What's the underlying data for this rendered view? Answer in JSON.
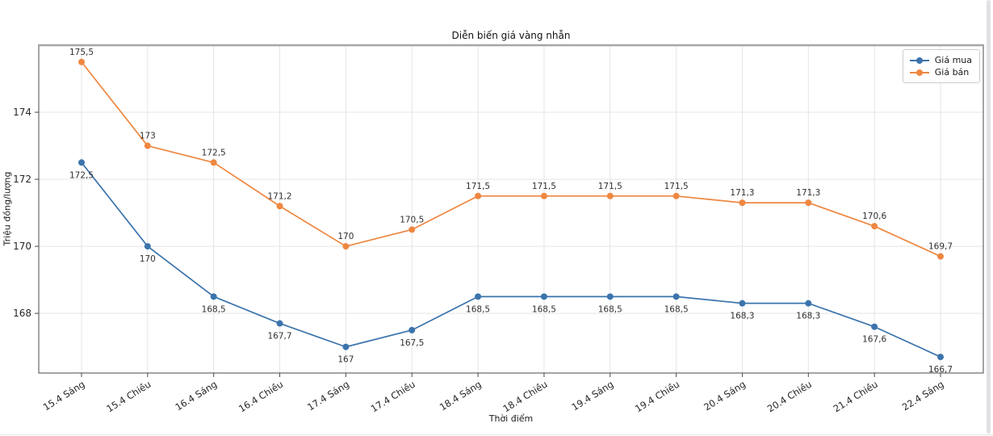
{
  "chart_data": {
    "type": "line",
    "title": "Diễn biến giá vàng nhẫn",
    "xlabel": "Thời điểm",
    "ylabel": "Triệu đồng/lượng",
    "categories": [
      "15.4 Sáng",
      "15.4 Chiều",
      "16.4 Sáng",
      "16.4 Chiều",
      "17.4 Sáng",
      "17.4 Chiều",
      "18.4 Sáng",
      "18.4 Chiều",
      "19.4 Sáng",
      "19.4 Chiều",
      "20.4 Sáng",
      "20.4 Chiều",
      "21.4 Chiều",
      "22.4 Sáng"
    ],
    "series": [
      {
        "name": "Giá mua",
        "color": "#3b74ac",
        "values": [
          172.5,
          170,
          168.5,
          167.7,
          167,
          167.5,
          168.5,
          168.5,
          168.5,
          168.5,
          168.3,
          168.3,
          167.6,
          166.7
        ],
        "labels": [
          "172,5",
          "170",
          "168,5",
          "167,7",
          "167",
          "167,5",
          "168,5",
          "168,5",
          "168,5",
          "168,5",
          "168,3",
          "168,3",
          "167,6",
          "166,7"
        ],
        "label_position": "below"
      },
      {
        "name": "Giá bán",
        "color": "#ee8740",
        "values": [
          175.5,
          173,
          172.5,
          171.2,
          170,
          170.5,
          171.5,
          171.5,
          171.5,
          171.5,
          171.3,
          171.3,
          170.6,
          169.7
        ],
        "labels": [
          "175,5",
          "173",
          "172,5",
          "171,2",
          "170",
          "170,5",
          "171,5",
          "171,5",
          "171,5",
          "171,5",
          "171,3",
          "171,3",
          "170,6",
          "169,7"
        ],
        "label_position": "above"
      }
    ],
    "yticks": [
      168,
      170,
      172,
      174
    ],
    "ylim": [
      166.22,
      176.0
    ],
    "grid": true,
    "legend_position": "top-right",
    "colors": {
      "gridline": "#e4e4e4",
      "spine": "#4a4a4a",
      "top_spine": "#a6a6a6",
      "tick_text": "#262626",
      "data_label_text": "#303030"
    }
  }
}
